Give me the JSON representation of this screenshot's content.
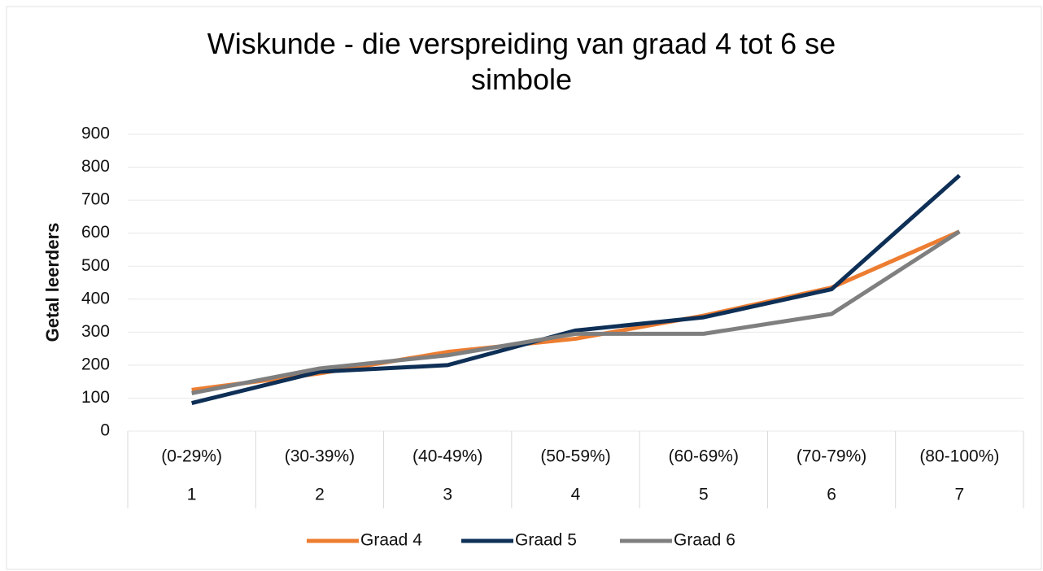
{
  "chart_data": {
    "type": "line",
    "title": "Wiskunde - die verspreiding van graad 4 tot 6 se simbole",
    "y_label": "Getal leerders",
    "categories": [
      "(0-29%)",
      "(30-39%)",
      "(40-49%)",
      "(50-59%)",
      "(60-69%)",
      "(70-79%)",
      "(80-100%)"
    ],
    "category_codes": [
      "1",
      "2",
      "3",
      "4",
      "5",
      "6",
      "7"
    ],
    "series": [
      {
        "name": "Graad 4",
        "color": "#ed7d31",
        "values": [
          125,
          175,
          240,
          280,
          350,
          435,
          605
        ]
      },
      {
        "name": "Graad 5",
        "color": "#0e2f56",
        "values": [
          85,
          180,
          200,
          305,
          345,
          430,
          775
        ]
      },
      {
        "name": "Graad 6",
        "color": "#7f7f7f",
        "values": [
          115,
          190,
          230,
          295,
          295,
          355,
          605
        ]
      }
    ],
    "ylim": [
      0,
      900
    ],
    "yticks": [
      0,
      100,
      200,
      300,
      400,
      500,
      600,
      700,
      800,
      900
    ],
    "grid": true,
    "legend": "bottom"
  }
}
